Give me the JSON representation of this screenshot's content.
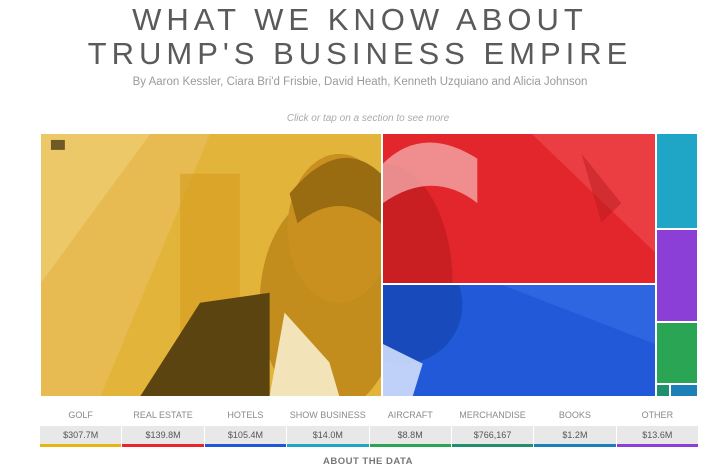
{
  "header": {
    "title_line1": "WHAT WE KNOW ABOUT",
    "title_line2": "TRUMP'S BUSINESS EMPIRE",
    "byline": "By Aaron Kessler, Ciara Bri'd Frisbie, David Heath, Kenneth Uzquiano and Alicia Johnson",
    "hint": "Click or tap on a section to see more"
  },
  "categories": [
    {
      "label": "GOLF",
      "value": "$307.7M",
      "color": "#e8b512"
    },
    {
      "label": "REAL ESTATE",
      "value": "$139.8M",
      "color": "#e8252a"
    },
    {
      "label": "HOTELS",
      "value": "$105.4M",
      "color": "#1f57d6"
    },
    {
      "label": "SHOW BUSINESS",
      "value": "$14.0M",
      "color": "#1fa6c6"
    },
    {
      "label": "AIRCRAFT",
      "value": "$8.8M",
      "color": "#2aa553"
    },
    {
      "label": "MERCHANDISE",
      "value": "$766,167",
      "color": "#1f8f6e"
    },
    {
      "label": "BOOKS",
      "value": "$1.2M",
      "color": "#1d7fb8"
    },
    {
      "label": "OTHER",
      "value": "$13.6M",
      "color": "#8b3fd6"
    }
  ],
  "footer": {
    "about_label": "ABOUT THE DATA"
  }
}
